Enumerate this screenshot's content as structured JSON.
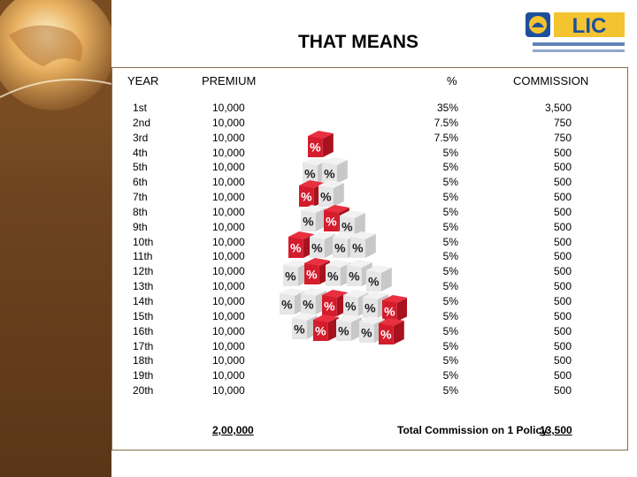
{
  "title": "THAT MEANS",
  "logo": {
    "text": "LIC"
  },
  "headers": {
    "year": "YEAR",
    "premium": "PREMIUM",
    "percent": "%",
    "commission": "COMMISSION"
  },
  "years": [
    "1st",
    "2nd",
    "3rd",
    "4th",
    "5th",
    "6th",
    "7th",
    "8th",
    "9th",
    "10th",
    "11th",
    "12th",
    "13th",
    "14th",
    "15th",
    "16th",
    "17th",
    "18th",
    "19th",
    "20th"
  ],
  "premiums": [
    "10,000",
    "10,000",
    "10,000",
    "10,000",
    "10,000",
    "10,000",
    "10,000",
    "10,000",
    "10,000",
    "10,000",
    "10,000",
    "10,000",
    "10,000",
    "10,000",
    "10,000",
    "10,000",
    "10,000",
    "10,000",
    "10,000",
    "10,000"
  ],
  "percents": [
    "35%",
    "7.5%",
    "7.5%",
    "5%",
    "5%",
    "5%",
    "5%",
    "5%",
    "5%",
    "5%",
    "5%",
    "5%",
    "5%",
    "5%",
    "5%",
    "5%",
    "5%",
    "5%",
    "5%",
    "5%"
  ],
  "commissions": [
    "3,500",
    "750",
    "750",
    "500",
    "500",
    "500",
    "500",
    "500",
    "500",
    "500",
    "500",
    "500",
    "500",
    "500",
    "500",
    "500",
    "500",
    "500",
    "500",
    "500"
  ],
  "totals": {
    "premium": "2,00,000",
    "commission_label": "Total Commission on 1 Policy",
    "commission": "13,500"
  }
}
